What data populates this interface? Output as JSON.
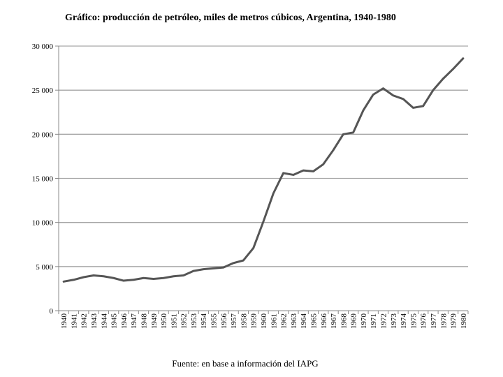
{
  "chart_data": {
    "type": "line",
    "title": "Gráfico: producción de petróleo, miles de metros cúbicos, Argentina, 1940-1980",
    "source": "Fuente: en base a información del IAPG",
    "xlabel": "",
    "ylabel": "",
    "ylim": [
      0,
      30000
    ],
    "yticks": [
      0,
      5000,
      10000,
      15000,
      20000,
      25000,
      30000
    ],
    "ytick_labels": [
      "0",
      "5 000",
      "10 000",
      "15 000",
      "20 000",
      "25 000",
      "30 000"
    ],
    "grid": true,
    "legend": "none",
    "x": [
      "1940",
      "1941",
      "1942",
      "1943",
      "1944",
      "1945",
      "1946",
      "1947",
      "1948",
      "1949",
      "1950",
      "1951",
      "1952",
      "1953",
      "1954",
      "1955",
      "1956",
      "1957",
      "1958",
      "1959",
      "1960",
      "1961",
      "1962",
      "1963",
      "1964",
      "1965",
      "1966",
      "1967",
      "1968",
      "1969",
      "1970",
      "1971",
      "1972",
      "1973",
      "1974",
      "1975",
      "1976",
      "1977",
      "1978",
      "1979",
      "1980"
    ],
    "series": [
      {
        "values": [
          3300,
          3500,
          3800,
          4000,
          3900,
          3700,
          3400,
          3500,
          3700,
          3600,
          3700,
          3900,
          4000,
          4500,
          4700,
          4800,
          4900,
          5400,
          5700,
          7100,
          10100,
          13300,
          15600,
          15400,
          15900,
          15800,
          16600,
          18200,
          20000,
          20200,
          22700,
          24500,
          25200,
          24400,
          24000,
          23000,
          23200,
          25000,
          26300,
          27400,
          28600
        ]
      }
    ],
    "colors": {
      "line": "#555555",
      "grid": "#a6a6a6",
      "axis": "#888888"
    }
  }
}
